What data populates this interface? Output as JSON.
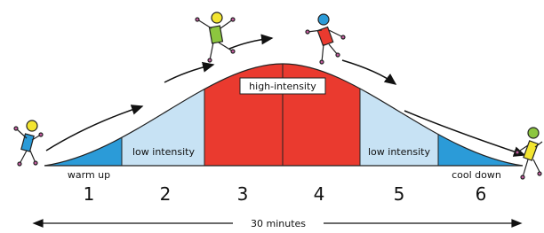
{
  "segments": [
    {
      "number": "1",
      "label": "warm up"
    },
    {
      "number": "2",
      "label": "low intensity"
    },
    {
      "number": "3",
      "label": "high-intensity"
    },
    {
      "number": "4"
    },
    {
      "number": "5",
      "label": "low intensity"
    },
    {
      "number": "6",
      "label": "cool down"
    }
  ],
  "duration": "30 minutes"
}
